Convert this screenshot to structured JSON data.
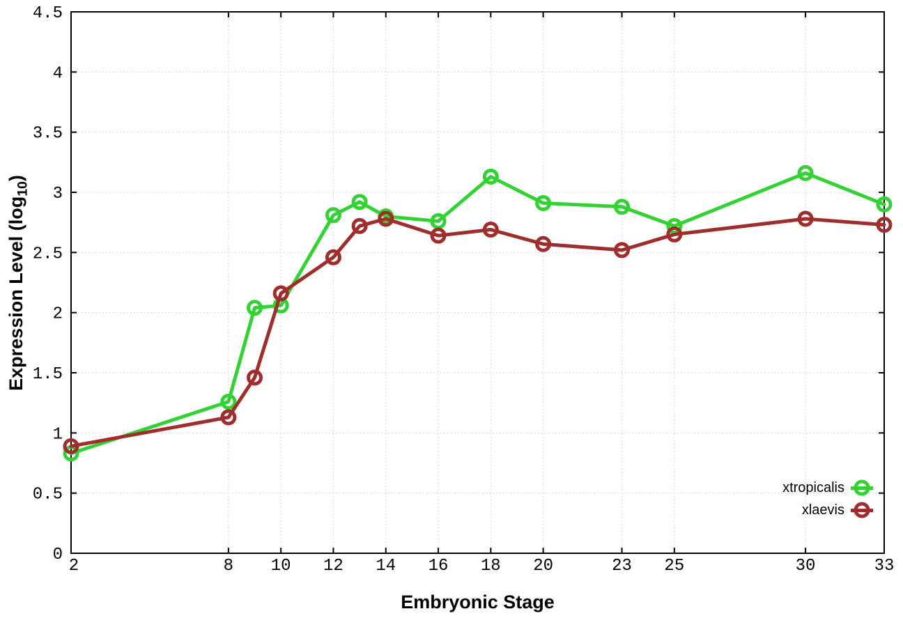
{
  "chart_data": {
    "type": "line",
    "title": "",
    "xlabel": "Embryonic Stage",
    "ylabel": "Expression Level (log10)",
    "ylabel_parts": {
      "main": "Expression Level (log",
      "sub": "10",
      "suffix": ")"
    },
    "xlim": [
      2,
      33
    ],
    "ylim": [
      0,
      4.5
    ],
    "grid": true,
    "grid_style": "dotted",
    "legend_position": "inside-bottom-right",
    "x": [
      2,
      8,
      9,
      10,
      12,
      13,
      14,
      16,
      18,
      20,
      23,
      25,
      30,
      33
    ],
    "xticks": [
      2,
      8,
      10,
      12,
      14,
      16,
      18,
      20,
      23,
      25,
      30,
      33
    ],
    "xtick_labels": [
      "2",
      "8",
      "10",
      "12",
      "14",
      "16",
      "18",
      "20",
      "23",
      "25",
      "30",
      "33"
    ],
    "yticks": [
      0,
      0.5,
      1,
      1.5,
      2,
      2.5,
      3,
      3.5,
      4,
      4.5
    ],
    "ytick_labels": [
      "0",
      "0.5",
      "1",
      "1.5",
      "2",
      "2.5",
      "3",
      "3.5",
      "4",
      "4.5"
    ],
    "marker": "open-circle",
    "series": [
      {
        "name": "xtropicalis",
        "color": "#32d232",
        "values": [
          0.83,
          1.26,
          2.04,
          2.06,
          2.81,
          2.92,
          2.8,
          2.76,
          3.13,
          2.91,
          2.88,
          2.72,
          3.16,
          2.9
        ]
      },
      {
        "name": "xlaevis",
        "color": "#a02c2c",
        "values": [
          0.89,
          1.13,
          1.46,
          2.16,
          2.46,
          2.72,
          2.78,
          2.64,
          2.69,
          2.57,
          2.52,
          2.65,
          2.78,
          2.73
        ]
      }
    ],
    "colors": {
      "grid": "#c8c8c8",
      "axis": "#000000",
      "background": "#ffffff"
    }
  }
}
